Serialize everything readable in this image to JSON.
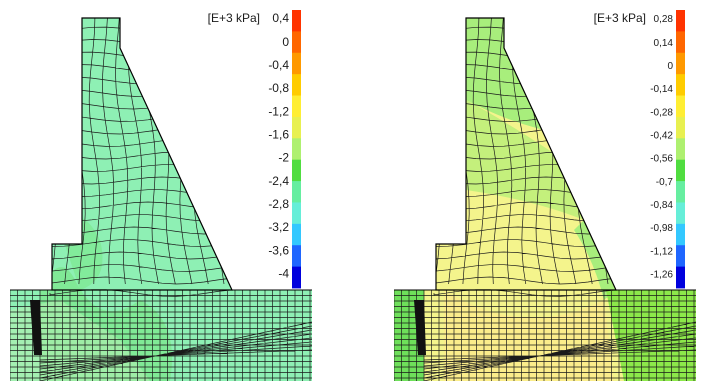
{
  "panels": [
    {
      "id": "left",
      "unit_label": "[E+3 kPa]",
      "ticks": [
        "0,4",
        "0",
        "-0,4",
        "-0,8",
        "-1,2",
        "-1,6",
        "-2",
        "-2,4",
        "-2,8",
        "-3,2",
        "-3,6",
        "-4"
      ],
      "legend_colors": [
        "#ff3300",
        "#ff6600",
        "#ff9900",
        "#ffcc00",
        "#ffee33",
        "#e8f050",
        "#aef070",
        "#50dd40",
        "#66eea0",
        "#66eed8",
        "#33c8ff",
        "#1f66ff",
        "#0000dd"
      ],
      "base_fill": "#8ef0b4",
      "zone_colors": [
        "#7ee890",
        "#a8f078",
        "#b2f0b0"
      ]
    },
    {
      "id": "right",
      "unit_label": "[E+3 kPa]",
      "ticks": [
        "0,28",
        "0,14",
        "0",
        "-0,14",
        "-0,28",
        "-0,42",
        "-0,56",
        "-0,7",
        "-0,84",
        "-0,98",
        "-1,12",
        "-1,26"
      ],
      "legend_colors": [
        "#ff3300",
        "#ff6600",
        "#ff9900",
        "#ffcc00",
        "#ffee33",
        "#e8f050",
        "#aef070",
        "#50dd40",
        "#66eea0",
        "#66eed8",
        "#33c8ff",
        "#1f66ff",
        "#0000dd"
      ],
      "base_fill": "#f4f48c",
      "zone_colors": [
        "#c4f07c",
        "#a8ee7c",
        "#8ce84a",
        "#6ee05a",
        "#ffe88a"
      ]
    }
  ]
}
